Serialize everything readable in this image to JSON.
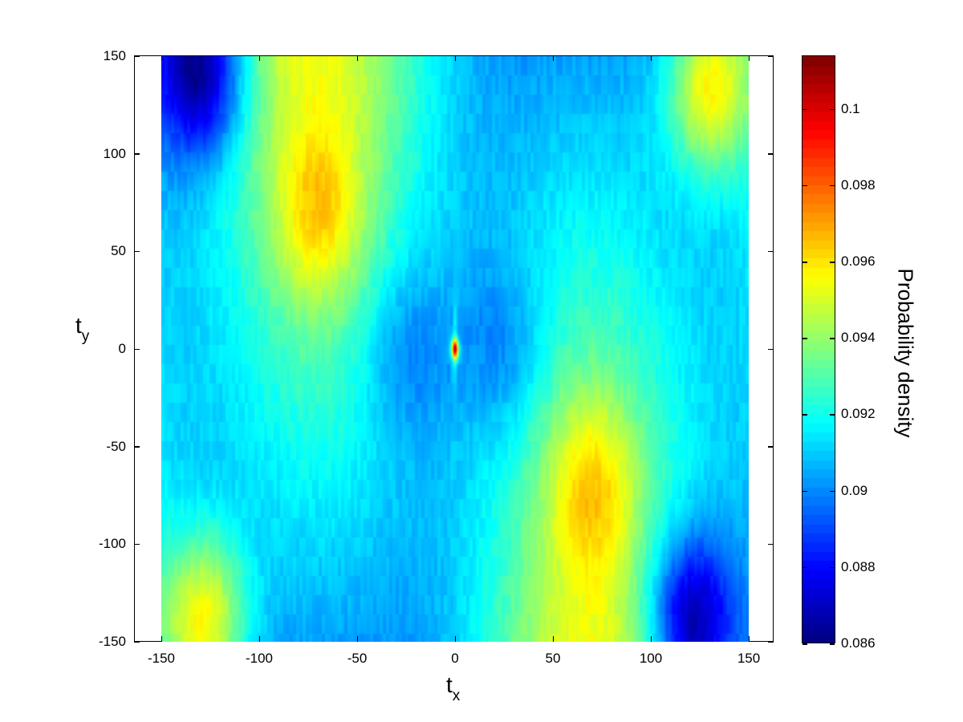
{
  "chart_data": {
    "type": "heatmap",
    "title": "",
    "xlabel": "t_x",
    "ylabel": "t_y",
    "xlabel_main": "t",
    "xlabel_sub": "x",
    "ylabel_main": "t",
    "ylabel_sub": "y",
    "xlim": [
      -150,
      150
    ],
    "ylim": [
      -150,
      150
    ],
    "x_ticks": [
      "-150",
      "-100",
      "-50",
      "0",
      "50",
      "100",
      "150"
    ],
    "y_ticks": [
      "150",
      "100",
      "50",
      "0",
      "-50",
      "-100",
      "-150"
    ],
    "colormap": "jet",
    "colorbar": {
      "label": "Probability density",
      "range": [
        0.086,
        0.1014
      ],
      "ticks": [
        "0.1",
        "0.098",
        "0.096",
        "0.094",
        "0.092",
        "0.09",
        "0.088",
        "0.086"
      ]
    },
    "grid": false,
    "features": [
      {
        "x": 0,
        "y": 0,
        "value": 0.101,
        "description": "sharp red peak at origin"
      },
      {
        "x": -128,
        "y": -140,
        "value": 0.097,
        "description": "orange/red ridge bottom-left"
      },
      {
        "x": 130,
        "y": 135,
        "value": 0.097,
        "description": "orange/red ridge top-right"
      },
      {
        "x": -130,
        "y": 145,
        "value": 0.0865,
        "description": "dark blue minimum top-left"
      },
      {
        "x": 120,
        "y": -140,
        "value": 0.0865,
        "description": "dark blue minimum bottom-right"
      },
      {
        "x": -70,
        "y": 70,
        "value": 0.0945,
        "description": "yellow-green band"
      },
      {
        "x": 70,
        "y": -70,
        "value": 0.0945,
        "description": "yellow-green band"
      },
      {
        "x": -25,
        "y": 0,
        "value": 0.0905,
        "description": "light blue lobe left of origin"
      },
      {
        "x": 25,
        "y": 0,
        "value": 0.0905,
        "description": "light blue lobe right of origin"
      }
    ],
    "background_value": 0.092
  }
}
